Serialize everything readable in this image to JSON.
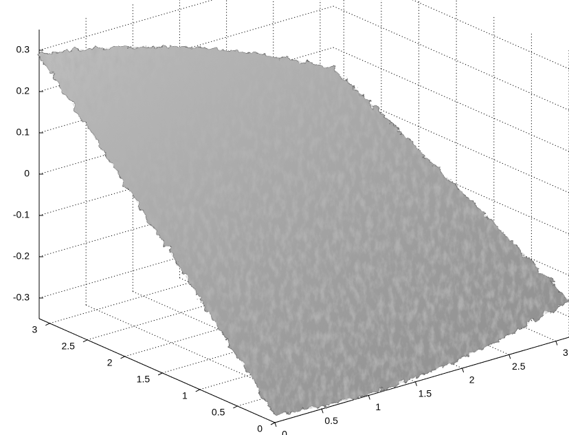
{
  "chart_data": {
    "type": "surface3d",
    "title": "",
    "xlabel": "",
    "ylabel": "",
    "zlabel": "",
    "xlim": [
      0,
      3
    ],
    "ylim": [
      0,
      3
    ],
    "zlim": [
      -0.35,
      0.35
    ],
    "grid": true,
    "colormap": "gray",
    "surface_description_values": {
      "z_at_corner_x0_y3": 0.29,
      "z_at_corner_x3_y3": 0.05,
      "z_at_corner_x3_y0": -0.26,
      "z_at_corner_x0_y0": -0.33
    },
    "ticks": {
      "x": [
        "0",
        "0.5",
        "1",
        "1.5",
        "2",
        "2.5",
        "3"
      ],
      "y": [
        "0",
        "0.5",
        "1",
        "1.5",
        "2",
        "2.5",
        "3"
      ],
      "z": [
        "0.3",
        "0.2",
        "0.1",
        "0",
        "-0.1",
        "-0.2",
        "-0.3"
      ]
    },
    "colors": {
      "surface_light": "#d0d0d0",
      "surface_mid": "#9a9a9a",
      "surface_dark": "#555555",
      "grid": "#000000"
    }
  }
}
